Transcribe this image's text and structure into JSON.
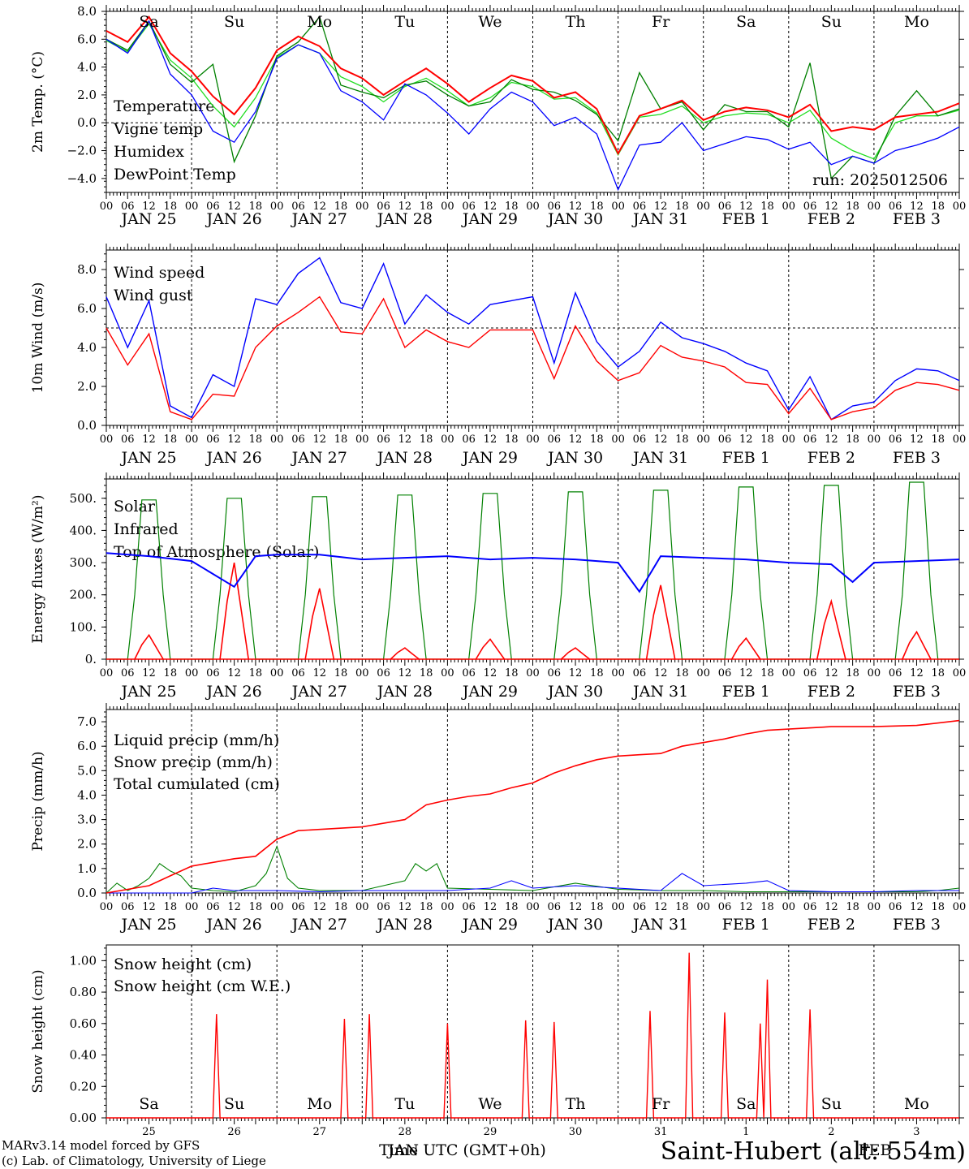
{
  "colors": {
    "red": "#ff0000",
    "green": "#008000",
    "blue": "#0000ff",
    "lightgreen": "#22dd22"
  },
  "hour_labels": [
    "00",
    "06",
    "12",
    "18"
  ],
  "day_date_labels": [
    "JAN 25",
    "JAN 26",
    "JAN 27",
    "JAN 28",
    "JAN 29",
    "JAN 30",
    "JAN 31",
    "FEB  1",
    "FEB  2",
    "FEB  3"
  ],
  "weekday_labels": [
    "Sa",
    "Su",
    "Mo",
    "Tu",
    "We",
    "Th",
    "Fr",
    "Sa",
    "Su",
    "Mo"
  ],
  "bottom_day_numbers": [
    "25",
    "26",
    "27",
    "28",
    "29",
    "30",
    "31",
    "1",
    "2",
    "3"
  ],
  "footer": {
    "model": "MARv3.14 model forced by GFS",
    "lab": "(c) Lab. of Climatology, University of Liege",
    "xaxis": "Time  UTC (GMT+0h)",
    "overlap_month": "JAN",
    "overlap_month2": "FEB",
    "station": "Saint-Hubert (alt: 554m)"
  },
  "chart_data": [
    {
      "type": "line",
      "ylabel": "2m Temp. (°C)",
      "ylim": [
        -5,
        8
      ],
      "yticks": [
        "8.0",
        "6.0",
        "4.0",
        "2.0",
        "0.0",
        "−2.0",
        "−4.0"
      ],
      "run_label": "run: 2025012506",
      "x_unit": "hours since JAN 25 00 UTC",
      "series": [
        {
          "name": "Temperature",
          "color": "red",
          "x": [
            0,
            6,
            12,
            18,
            24,
            30,
            36,
            42,
            48,
            54,
            60,
            66,
            72,
            78,
            84,
            90,
            96,
            102,
            108,
            114,
            120,
            126,
            132,
            138,
            144,
            150,
            156,
            162,
            168,
            174,
            180,
            186,
            192,
            198,
            204,
            210,
            216,
            222,
            228,
            234,
            240
          ],
          "y": [
            6.6,
            5.8,
            7.6,
            5.0,
            3.7,
            1.9,
            0.6,
            2.5,
            5.2,
            6.2,
            5.5,
            3.9,
            3.2,
            2.0,
            3.0,
            3.9,
            2.8,
            1.5,
            2.5,
            3.4,
            3.0,
            1.8,
            2.2,
            1.0,
            -2.2,
            0.5,
            1.0,
            1.6,
            0.2,
            0.8,
            1.1,
            0.9,
            0.4,
            1.3,
            -0.6,
            -0.3,
            -0.5,
            0.4,
            0.6,
            0.8,
            1.4
          ]
        },
        {
          "name": "Vigne temp",
          "color": "green",
          "x": [
            0,
            6,
            12,
            18,
            24,
            30,
            36,
            42,
            48,
            54,
            60,
            66,
            72,
            78,
            84,
            90,
            96,
            102,
            108,
            114,
            120,
            126,
            132,
            138,
            144,
            150,
            156,
            162,
            168,
            174,
            180,
            186,
            192,
            198,
            204,
            210,
            216,
            222,
            228,
            234,
            240
          ],
          "y": [
            6.0,
            5.2,
            7.3,
            4.2,
            2.9,
            4.2,
            -2.8,
            0.5,
            4.8,
            5.8,
            7.6,
            2.7,
            2.2,
            1.8,
            2.7,
            3.0,
            2.0,
            1.2,
            1.5,
            3.1,
            2.4,
            2.2,
            1.6,
            0.6,
            -1.3,
            3.6,
            1.0,
            1.5,
            -0.5,
            1.3,
            0.8,
            0.8,
            -0.3,
            4.3,
            -4.0,
            -2.4,
            -2.9,
            0.5,
            2.3,
            0.5,
            1.0
          ]
        },
        {
          "name": "Humidex",
          "color": "blue",
          "x": [
            0,
            6,
            12,
            18,
            24,
            30,
            36,
            42,
            48,
            54,
            60,
            66,
            72,
            78,
            84,
            90,
            96,
            102,
            108,
            114,
            120,
            126,
            132,
            138,
            144,
            150,
            156,
            162,
            168,
            174,
            180,
            186,
            192,
            198,
            204,
            210,
            216,
            222,
            228,
            234,
            240
          ],
          "y": [
            6.0,
            5.0,
            7.3,
            3.5,
            2.0,
            -0.6,
            -1.4,
            0.8,
            4.6,
            5.6,
            5.0,
            2.3,
            1.5,
            0.2,
            2.8,
            2.0,
            0.7,
            -0.8,
            1.0,
            2.2,
            1.5,
            -0.2,
            0.4,
            -0.8,
            -4.8,
            -1.6,
            -1.4,
            0.0,
            -2.0,
            -1.5,
            -1.0,
            -1.2,
            -1.9,
            -1.4,
            -3.0,
            -2.4,
            -2.9,
            -2.0,
            -1.6,
            -1.1,
            -0.3
          ]
        },
        {
          "name": "DewPoint Temp",
          "color": "lightgreen",
          "x": [
            0,
            6,
            12,
            18,
            24,
            30,
            36,
            42,
            48,
            54,
            60,
            66,
            72,
            78,
            84,
            90,
            96,
            102,
            108,
            114,
            120,
            126,
            132,
            138,
            144,
            150,
            156,
            162,
            168,
            174,
            180,
            186,
            192,
            198,
            204,
            210,
            216,
            222,
            228,
            234,
            240
          ],
          "y": [
            5.9,
            5.1,
            7.1,
            4.5,
            3.2,
            1.2,
            -0.3,
            1.8,
            4.7,
            5.6,
            5.0,
            3.3,
            2.6,
            1.5,
            2.6,
            3.2,
            2.3,
            1.2,
            1.8,
            2.9,
            2.6,
            1.7,
            1.8,
            0.7,
            -2.3,
            0.4,
            0.6,
            1.2,
            0.0,
            0.5,
            0.7,
            0.6,
            0.0,
            0.9,
            -1.1,
            -2.0,
            -2.6,
            0.0,
            0.5,
            0.5,
            0.9
          ]
        }
      ]
    },
    {
      "type": "line",
      "ylabel": "10m Wind (m/s)",
      "ylim": [
        0,
        9
      ],
      "yticks": [
        "8.0",
        "6.0",
        "4.0",
        "2.0",
        "0.0"
      ],
      "series": [
        {
          "name": "Wind speed",
          "color": "red",
          "x": [
            0,
            6,
            12,
            18,
            24,
            30,
            36,
            42,
            48,
            54,
            60,
            66,
            72,
            78,
            84,
            90,
            96,
            102,
            108,
            114,
            120,
            126,
            132,
            138,
            144,
            150,
            156,
            162,
            168,
            174,
            180,
            186,
            192,
            198,
            204,
            210,
            216,
            222,
            228,
            234,
            240
          ],
          "y": [
            5.0,
            3.1,
            4.7,
            0.7,
            0.3,
            1.6,
            1.5,
            4.0,
            5.1,
            5.8,
            6.6,
            4.8,
            4.7,
            6.5,
            4.0,
            4.9,
            4.3,
            4.0,
            4.9,
            4.9,
            4.9,
            2.4,
            5.1,
            3.3,
            2.3,
            2.7,
            4.1,
            3.5,
            3.3,
            3.0,
            2.2,
            2.1,
            0.6,
            1.9,
            0.3,
            0.7,
            0.9,
            1.8,
            2.2,
            2.1,
            1.8
          ]
        },
        {
          "name": "Wind gust",
          "color": "blue",
          "x": [
            0,
            6,
            12,
            18,
            24,
            30,
            36,
            42,
            48,
            54,
            60,
            66,
            72,
            78,
            84,
            90,
            96,
            102,
            108,
            114,
            120,
            126,
            132,
            138,
            144,
            150,
            156,
            162,
            168,
            174,
            180,
            186,
            192,
            198,
            204,
            210,
            216,
            222,
            228,
            234,
            240
          ],
          "y": [
            6.6,
            4.0,
            6.4,
            1.0,
            0.4,
            2.6,
            2.0,
            6.5,
            6.2,
            7.8,
            8.6,
            6.3,
            6.0,
            8.3,
            5.2,
            6.7,
            5.8,
            5.2,
            6.2,
            6.4,
            6.6,
            3.2,
            6.8,
            4.3,
            3.0,
            3.8,
            5.3,
            4.5,
            4.2,
            3.8,
            3.2,
            2.8,
            0.8,
            2.5,
            0.3,
            1.0,
            1.2,
            2.3,
            2.9,
            2.8,
            2.3
          ]
        }
      ]
    },
    {
      "type": "line",
      "ylabel": "Energy fluxes (W/m²)",
      "ylim": [
        0,
        560
      ],
      "yticks": [
        "500.",
        "400.",
        "300.",
        "200.",
        "100.",
        "0."
      ],
      "series": [
        {
          "name": "Solar",
          "color": "red",
          "peaks": [
            75,
            300,
            220,
            35,
            62,
            35,
            230,
            65,
            180,
            85
          ]
        },
        {
          "name": "Infrared",
          "color": "blue",
          "x": [
            0,
            12,
            24,
            36,
            42,
            48,
            60,
            72,
            84,
            96,
            108,
            120,
            132,
            144,
            150,
            156,
            168,
            180,
            192,
            204,
            210,
            216,
            228,
            240
          ],
          "y": [
            330,
            320,
            305,
            225,
            320,
            325,
            325,
            310,
            315,
            320,
            310,
            315,
            310,
            300,
            210,
            320,
            315,
            310,
            300,
            295,
            240,
            300,
            305,
            310
          ]
        },
        {
          "name": "Top of Atmosphere (Solar)",
          "color": "green",
          "peaks": [
            495,
            500,
            505,
            510,
            515,
            520,
            525,
            535,
            540,
            550
          ]
        }
      ]
    },
    {
      "type": "line",
      "ylabel": "Precip (mm/h)",
      "ylim": [
        0,
        7.5
      ],
      "yticks": [
        "7.0",
        "6.0",
        "5.0",
        "4.0",
        "3.0",
        "2.0",
        "1.0",
        "0.0"
      ],
      "series": [
        {
          "name": "Liquid precip (mm/h)",
          "color": "green",
          "x": [
            0,
            3,
            6,
            9,
            12,
            15,
            18,
            21,
            24,
            30,
            36,
            42,
            45,
            48,
            51,
            54,
            60,
            72,
            84,
            87,
            90,
            93,
            96,
            108,
            120,
            132,
            144,
            156,
            168,
            180,
            192,
            204,
            216,
            228,
            234,
            240
          ],
          "y": [
            0,
            0.4,
            0.1,
            0.3,
            0.6,
            1.2,
            0.9,
            0.7,
            0.2,
            0.1,
            0.05,
            0.3,
            0.8,
            1.9,
            0.6,
            0.2,
            0.1,
            0.1,
            0.5,
            1.2,
            0.9,
            1.2,
            0.2,
            0.15,
            0.1,
            0.4,
            0.15,
            0.1,
            0.1,
            0.05,
            0.05,
            0.05,
            0.05,
            0.05,
            0.1,
            0.2
          ]
        },
        {
          "name": "Snow precip (mm/h)",
          "color": "blue",
          "x": [
            0,
            24,
            30,
            36,
            48,
            60,
            72,
            96,
            108,
            114,
            120,
            132,
            144,
            156,
            162,
            168,
            180,
            186,
            192,
            204,
            216,
            228,
            240
          ],
          "y": [
            0,
            0,
            0.2,
            0.1,
            0.1,
            0.05,
            0.1,
            0.1,
            0.2,
            0.5,
            0.2,
            0.3,
            0.2,
            0.1,
            0.8,
            0.3,
            0.4,
            0.5,
            0.1,
            0.05,
            0.05,
            0.1,
            0.1
          ]
        },
        {
          "name": "Total cumulated (cm)",
          "color": "red",
          "x": [
            0,
            12,
            18,
            24,
            36,
            42,
            48,
            54,
            60,
            72,
            84,
            90,
            96,
            102,
            108,
            114,
            120,
            126,
            132,
            138,
            144,
            150,
            156,
            162,
            168,
            174,
            180,
            186,
            192,
            204,
            216,
            228,
            240
          ],
          "y": [
            0,
            0.3,
            0.7,
            1.1,
            1.4,
            1.5,
            2.2,
            2.55,
            2.6,
            2.7,
            3.0,
            3.6,
            3.8,
            3.95,
            4.05,
            4.3,
            4.5,
            4.9,
            5.2,
            5.45,
            5.6,
            5.65,
            5.7,
            6.0,
            6.15,
            6.3,
            6.5,
            6.65,
            6.7,
            6.8,
            6.8,
            6.85,
            7.05
          ]
        }
      ]
    },
    {
      "type": "line",
      "ylabel": "Snow height (cm)",
      "ylim": [
        0,
        1.1
      ],
      "yticks": [
        "1.00",
        "0.80",
        "0.60",
        "0.40",
        "0.20",
        "0.00"
      ],
      "series": [
        {
          "name": "Snow height (cm)",
          "color": "red",
          "spikes": [
            [
              31,
              0.66
            ],
            [
              67,
              0.63
            ],
            [
              74,
              0.66
            ],
            [
              96,
              0.6
            ],
            [
              118,
              0.62
            ],
            [
              126,
              0.61
            ],
            [
              153,
              0.68
            ],
            [
              164,
              1.05
            ],
            [
              174,
              0.67
            ],
            [
              184,
              0.6
            ],
            [
              186,
              0.88
            ],
            [
              198,
              0.69
            ]
          ]
        },
        {
          "name": "Snow height (cm W.E.)",
          "color": "blue",
          "spikes": []
        }
      ]
    }
  ]
}
